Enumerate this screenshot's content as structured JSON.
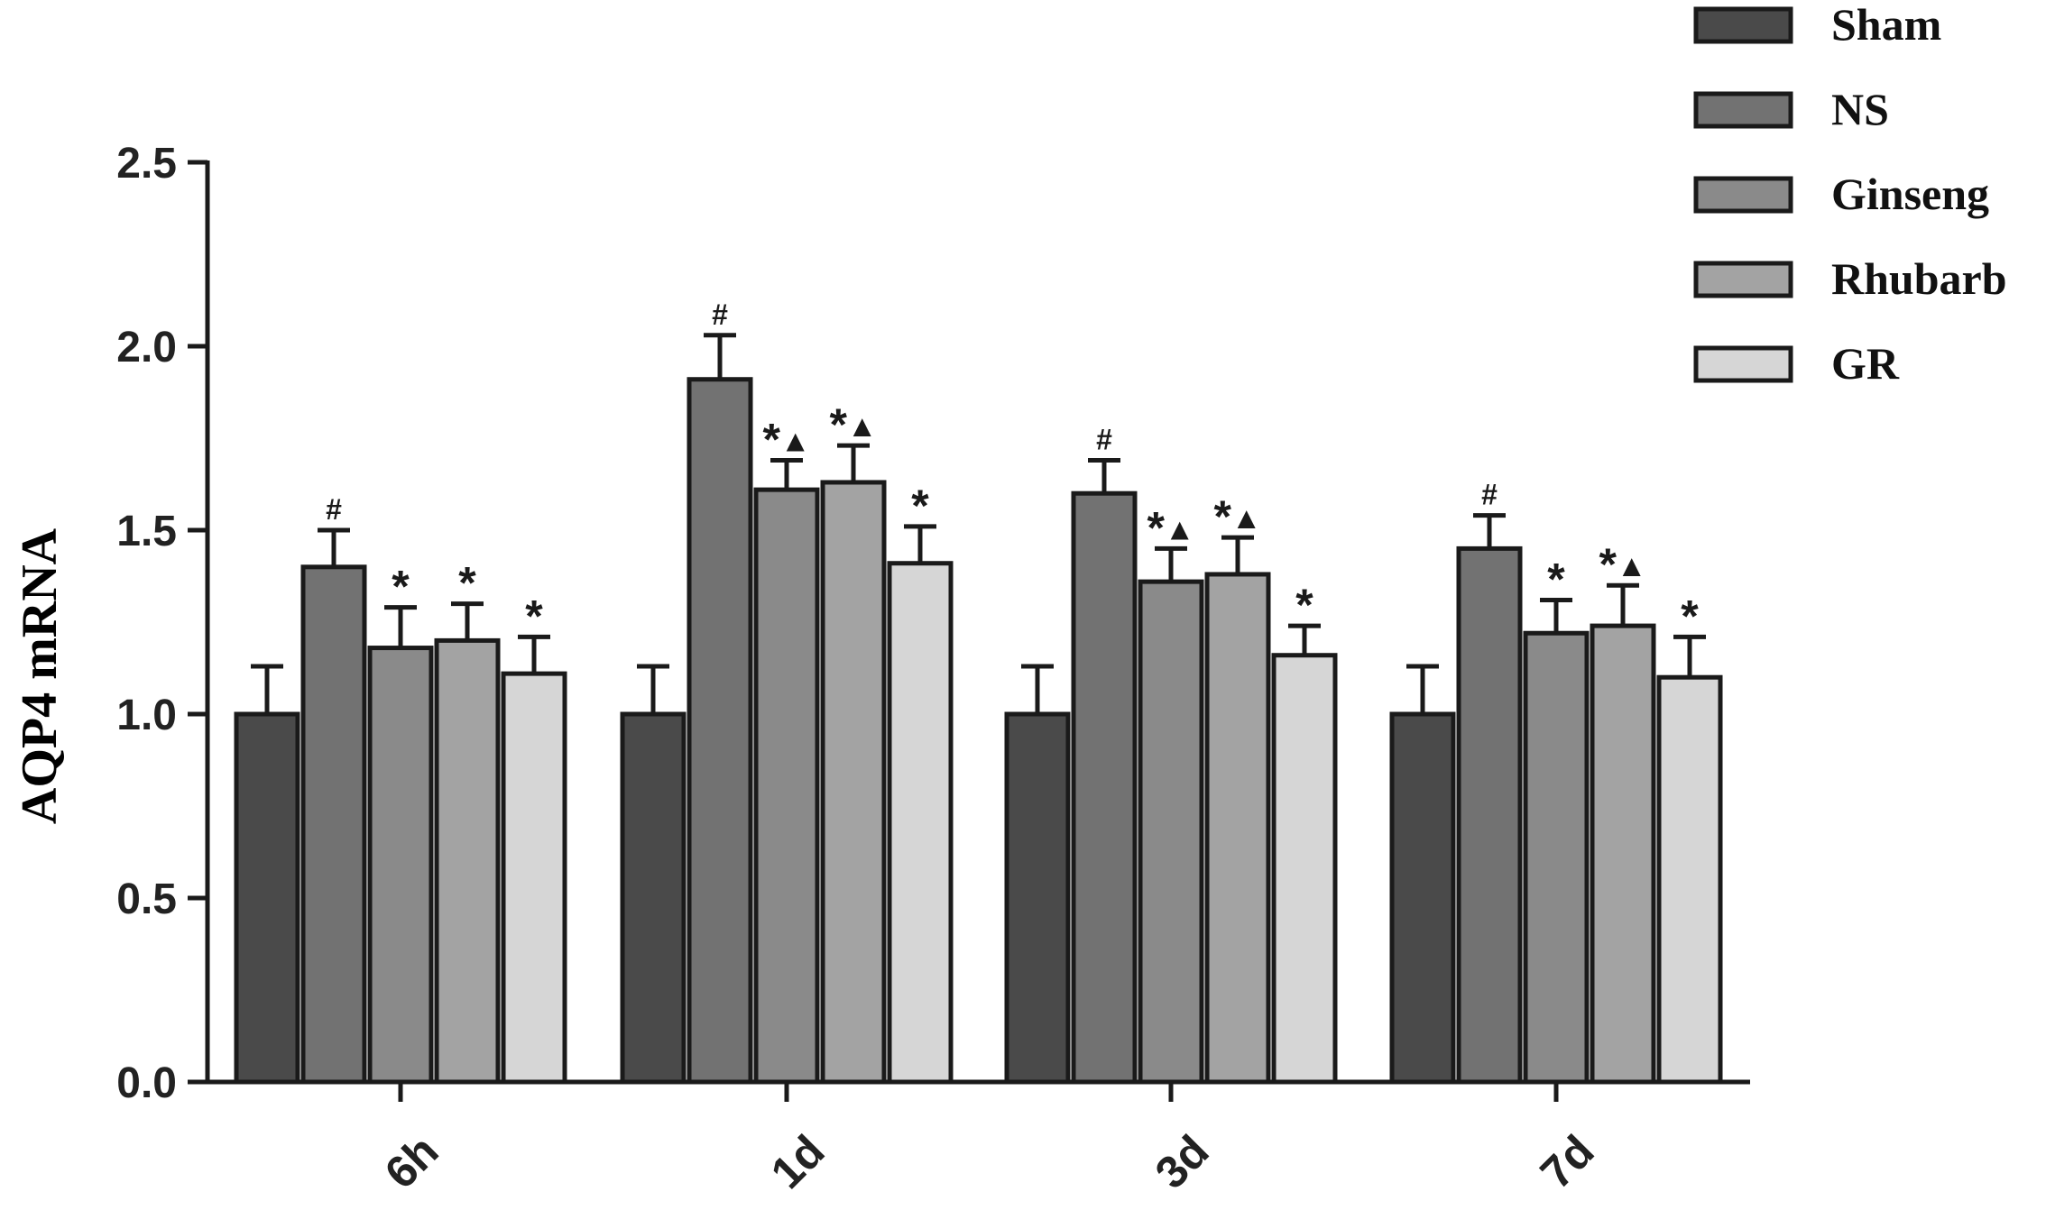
{
  "chart_data": {
    "type": "bar",
    "title": "",
    "xlabel": "",
    "ylabel": "AQP4 mRNA",
    "ylim": [
      0,
      2.5
    ],
    "yticks": [
      "0.0",
      "0.5",
      "1.0",
      "1.5",
      "2.0",
      "2.5"
    ],
    "grid": false,
    "legend_position": "top-right",
    "categories": [
      "6h",
      "1d",
      "3d",
      "7d"
    ],
    "series": [
      {
        "name": "Sham",
        "color": "#4a4a4a",
        "values": [
          1.0,
          1.0,
          1.0,
          1.0
        ],
        "errors": [
          0.13,
          0.13,
          0.13,
          0.13
        ],
        "marks": [
          "",
          "",
          "",
          ""
        ]
      },
      {
        "name": "NS",
        "color": "#727272",
        "values": [
          1.4,
          1.91,
          1.6,
          1.45
        ],
        "errors": [
          0.1,
          0.12,
          0.09,
          0.09
        ],
        "marks": [
          "#",
          "#",
          "#",
          "#"
        ]
      },
      {
        "name": "Ginseng",
        "color": "#8a8a8a",
        "values": [
          1.18,
          1.61,
          1.36,
          1.22
        ],
        "errors": [
          0.11,
          0.08,
          0.09,
          0.09
        ],
        "marks": [
          "*",
          "*▲",
          "*▲",
          "*"
        ]
      },
      {
        "name": "Rhubarb",
        "color": "#a3a3a3",
        "values": [
          1.2,
          1.63,
          1.38,
          1.24
        ],
        "errors": [
          0.1,
          0.1,
          0.1,
          0.11
        ],
        "marks": [
          "*",
          "*▲",
          "*▲",
          "*▲"
        ]
      },
      {
        "name": "GR",
        "color": "#d6d6d6",
        "values": [
          1.11,
          1.41,
          1.16,
          1.1
        ],
        "errors": [
          0.1,
          0.1,
          0.08,
          0.11
        ],
        "marks": [
          "*",
          "*",
          "*",
          "*"
        ]
      }
    ]
  }
}
